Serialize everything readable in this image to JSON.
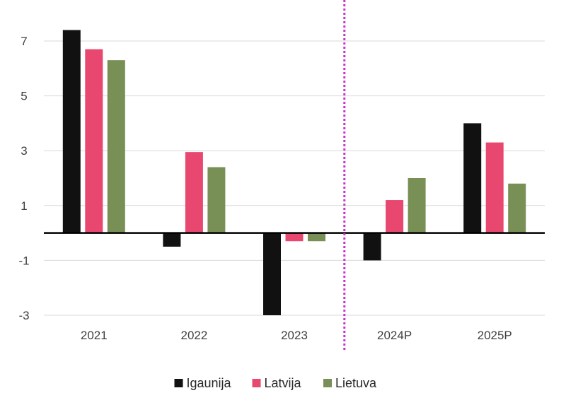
{
  "chart_data": {
    "type": "bar",
    "categories": [
      "2021",
      "2022",
      "2023",
      "2024P",
      "2025P"
    ],
    "series": [
      {
        "name": "Igaunija",
        "color": "#111111",
        "values": [
          7.4,
          -0.5,
          -3.0,
          -1.0,
          4.0
        ]
      },
      {
        "name": "Latvija",
        "color": "#e8476f",
        "values": [
          6.7,
          2.95,
          -0.3,
          1.2,
          3.3
        ]
      },
      {
        "name": "Lietuva",
        "color": "#788f55",
        "values": [
          6.3,
          2.4,
          -0.3,
          2.0,
          1.8
        ]
      }
    ],
    "yticks": [
      7,
      5,
      3,
      1,
      -1,
      -3
    ],
    "ylim": [
      -3,
      8
    ],
    "grid": true,
    "legend": "bottom-center",
    "forecast_divider": {
      "after_category": "2023",
      "color": "#cc33cc",
      "style": "dotted"
    },
    "zero_line_color": "#000000"
  }
}
